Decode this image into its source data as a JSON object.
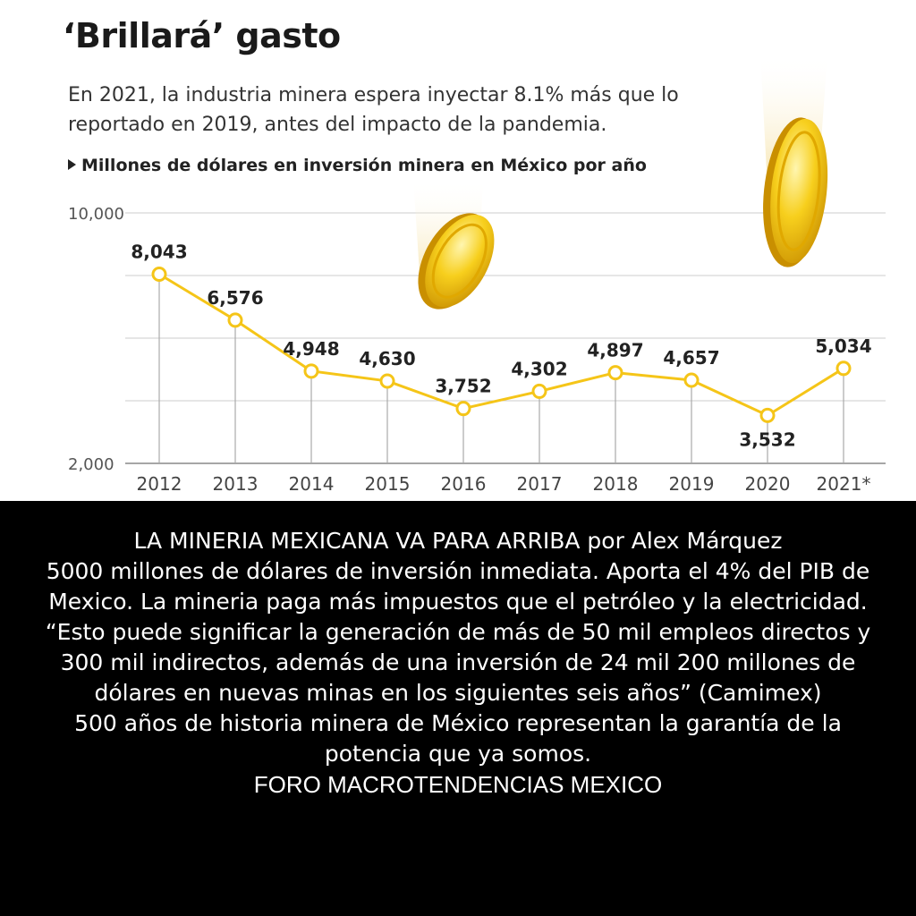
{
  "chart_data": {
    "type": "line",
    "title": "‘Brillará’ gasto",
    "subtitle": "En 2021, la industria minera espera inyectar 8.1% más que lo reportado en 2019, antes del impacto de la pandemia.",
    "series_label": "Millones de dólares en inversión minera en México por año",
    "categories": [
      "2012",
      "2013",
      "2014",
      "2015",
      "2016",
      "2017",
      "2018",
      "2019",
      "2020",
      "2021*"
    ],
    "values": [
      8043,
      6576,
      4948,
      4630,
      3752,
      4302,
      4897,
      4657,
      3532,
      5034
    ],
    "value_labels": [
      "8,043",
      "6,576",
      "4,948",
      "4,630",
      "3,752",
      "4,302",
      "4,897",
      "4,657",
      "3,532",
      "5,034"
    ],
    "y_tick_labels": [
      "10,000",
      "2,000"
    ],
    "ylim": [
      2000,
      10000
    ],
    "grid": true,
    "line_color": "#f5c518",
    "marker_fill": "#ffffff",
    "grid_color": "#cccccc",
    "decorations": [
      "falling-gold-coin-icon",
      "falling-gold-coin-icon"
    ]
  },
  "caption": {
    "lines": [
      "LA MINERIA MEXICANA VA PARA ARRIBA   por Alex Márquez",
      "5000 millones de dólares de inversión inmediata. Aporta el 4% del PIB de Mexico. La mineria paga más impuestos que el petróleo y la electricidad.",
      "“Esto puede significar la generación de más de 50 mil empleos directos y 300 mil indirectos, además de una inversión de 24 mil 200 millones de dólares en nuevas minas en los siguientes seis años” (Camimex)",
      "500 años de historia minera de México representan la garantía de la potencia que ya somos.",
      "FORO MACROTENDENCIAS MEXICO"
    ]
  }
}
